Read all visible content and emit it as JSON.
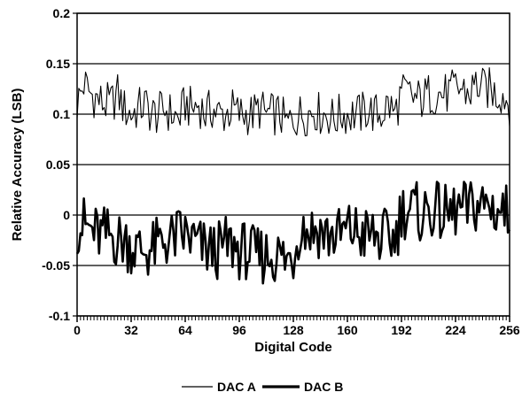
{
  "chart_data": {
    "type": "line",
    "xlabel": "Digital Code",
    "ylabel": "Relative Accuracy (LSB)",
    "xlim": [
      0,
      256
    ],
    "ylim": [
      -0.1,
      0.2
    ],
    "x_ticks": [
      0,
      32,
      64,
      96,
      128,
      160,
      192,
      224,
      256
    ],
    "x_tick_labels": [
      "0",
      "32",
      "64",
      "96",
      "128",
      "160",
      "192",
      "224",
      "256"
    ],
    "y_ticks": [
      0.2,
      0.15,
      0.1,
      0.05,
      0,
      -0.05,
      -0.1
    ],
    "y_tick_labels": [
      "0.2",
      "0.15",
      "0.1",
      "0.05",
      "0",
      "-0.05",
      "-0.1"
    ],
    "grid": "horizontal",
    "legend_position": "bottom-center",
    "series": [
      {
        "name": "DAC A",
        "color": "#000000",
        "style": "thin",
        "x": [
          0,
          4,
          8,
          12,
          16,
          20,
          24,
          28,
          32,
          36,
          40,
          44,
          48,
          52,
          56,
          60,
          64,
          68,
          72,
          76,
          80,
          84,
          88,
          92,
          96,
          100,
          104,
          108,
          112,
          116,
          120,
          124,
          128,
          132,
          136,
          140,
          144,
          148,
          152,
          156,
          160,
          164,
          168,
          172,
          176,
          180,
          184,
          188,
          192,
          196,
          200,
          204,
          208,
          212,
          216,
          220,
          224,
          228,
          232,
          236,
          240,
          244,
          248,
          252,
          256
        ],
        "y": [
          0.11,
          0.13,
          0.12,
          0.115,
          0.11,
          0.11,
          0.12,
          0.105,
          0.1,
          0.105,
          0.11,
          0.1,
          0.1,
          0.105,
          0.1,
          0.095,
          0.11,
          0.105,
          0.11,
          0.1,
          0.105,
          0.1,
          0.1,
          0.105,
          0.1,
          0.1,
          0.1,
          0.105,
          0.1,
          0.1,
          0.1,
          0.09,
          0.095,
          0.1,
          0.1,
          0.105,
          0.1,
          0.1,
          0.095,
          0.1,
          0.1,
          0.1,
          0.1,
          0.105,
          0.1,
          0.1,
          0.11,
          0.1,
          0.12,
          0.12,
          0.115,
          0.115,
          0.12,
          0.12,
          0.12,
          0.12,
          0.125,
          0.125,
          0.12,
          0.13,
          0.125,
          0.125,
          0.12,
          0.12,
          0.11
        ]
      },
      {
        "name": "DAC B",
        "color": "#000000",
        "style": "thick",
        "x": [
          0,
          4,
          8,
          12,
          16,
          20,
          24,
          28,
          32,
          36,
          40,
          44,
          48,
          52,
          56,
          60,
          64,
          68,
          72,
          76,
          80,
          84,
          88,
          92,
          96,
          100,
          104,
          108,
          112,
          116,
          120,
          124,
          128,
          132,
          136,
          140,
          144,
          148,
          152,
          156,
          160,
          164,
          168,
          172,
          176,
          180,
          184,
          188,
          192,
          196,
          200,
          204,
          208,
          212,
          216,
          220,
          224,
          228,
          232,
          236,
          240,
          244,
          248,
          252,
          256
        ],
        "y": [
          -0.01,
          -0.01,
          -0.015,
          -0.02,
          -0.02,
          -0.02,
          -0.025,
          -0.025,
          -0.03,
          -0.035,
          -0.035,
          -0.035,
          -0.03,
          -0.025,
          -0.025,
          -0.02,
          -0.02,
          -0.025,
          -0.03,
          -0.035,
          -0.035,
          -0.035,
          -0.03,
          -0.03,
          -0.035,
          -0.035,
          -0.04,
          -0.04,
          -0.04,
          -0.04,
          -0.04,
          -0.045,
          -0.04,
          -0.01,
          -0.015,
          -0.015,
          -0.015,
          -0.02,
          -0.02,
          -0.02,
          -0.015,
          -0.015,
          -0.02,
          -0.02,
          -0.02,
          -0.025,
          -0.02,
          -0.025,
          0.005,
          0.005,
          0.005,
          0.0,
          0.005,
          0.005,
          0.0,
          0.0,
          0.005,
          0.005,
          0.005,
          0.01,
          0.01,
          0.01,
          0.005,
          0.005,
          0.0
        ]
      }
    ]
  }
}
